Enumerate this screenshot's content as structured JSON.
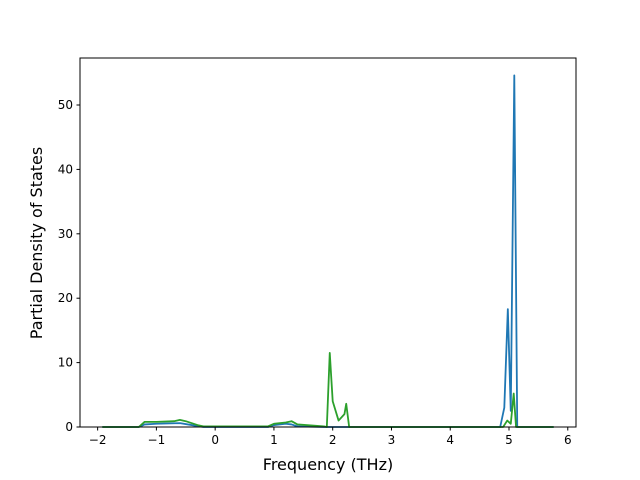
{
  "chart_data": {
    "type": "line",
    "x_label": "Frequency (THz)",
    "y_label": "Partial Density of States",
    "xlim": [
      -2.3,
      6.14
    ],
    "ylim": [
      0,
      57.3
    ],
    "xticks": [
      {
        "value": -2,
        "label": "−2"
      },
      {
        "value": -1,
        "label": "−1"
      },
      0,
      1,
      2,
      3,
      4,
      5,
      6
    ],
    "yticks": [
      0,
      10,
      20,
      30,
      40,
      50
    ],
    "series": [
      {
        "color": "#1f77b4",
        "x": [
          -1.92,
          -1.3,
          -1.2,
          -1.0,
          -0.6,
          -0.4,
          -0.2,
          0.9,
          1.0,
          1.2,
          1.3,
          1.4,
          1.85,
          4.85,
          4.92,
          4.98,
          5.03,
          5.09,
          5.14,
          5.76
        ],
        "values": [
          0,
          0,
          0.4,
          0.5,
          0.6,
          0.3,
          0,
          0,
          0.3,
          0.5,
          0.4,
          0.1,
          0,
          0,
          3,
          18.3,
          2.5,
          54.6,
          0,
          0
        ]
      },
      {
        "color": "#2ca02c",
        "x": [
          -1.92,
          -1.3,
          -1.2,
          -1.0,
          -0.7,
          -0.6,
          -0.5,
          -0.3,
          -0.2,
          0.9,
          1.0,
          1.2,
          1.3,
          1.4,
          1.85,
          1.9,
          1.95,
          2.0,
          2.1,
          2.2,
          2.23,
          2.28,
          4.9,
          4.97,
          5.03,
          5.08,
          5.12,
          5.76
        ],
        "values": [
          0,
          0,
          0.8,
          0.8,
          0.9,
          1.1,
          0.9,
          0.3,
          0.1,
          0.1,
          0.5,
          0.7,
          0.9,
          0.4,
          0.1,
          0,
          11.5,
          4,
          1,
          2,
          3.6,
          0,
          0,
          1,
          0.5,
          5.2,
          0,
          0
        ]
      }
    ]
  }
}
